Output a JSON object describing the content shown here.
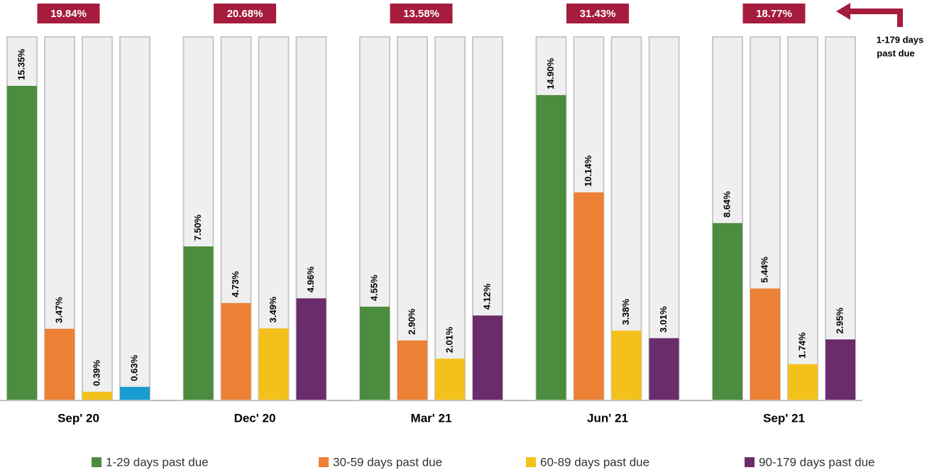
{
  "chart_data": {
    "type": "bar",
    "categories": [
      "Sep' 20",
      "Dec' 20",
      "Mar' 21",
      "Jun' 21",
      "Sep' 21"
    ],
    "totals": [
      19.84,
      20.68,
      13.58,
      31.43,
      18.77
    ],
    "total_labels": [
      "19.84%",
      "20.68%",
      "13.58%",
      "31.43%",
      "18.77%"
    ],
    "annotation": [
      "1-179 days",
      "past due"
    ],
    "series": [
      {
        "name": "1-29 days past due",
        "color": "#4b8c3e",
        "values": [
          15.35,
          7.5,
          4.55,
          14.9,
          8.64
        ],
        "value_labels": [
          "15.35%",
          "7.50%",
          "4.55%",
          "14.90%",
          "8.64%"
        ]
      },
      {
        "name": "30-59 days past due",
        "color": "#ec8035",
        "values": [
          3.47,
          4.73,
          2.9,
          10.14,
          5.44
        ],
        "value_labels": [
          "3.47%",
          "4.73%",
          "2.90%",
          "10.14%",
          "5.44%"
        ]
      },
      {
        "name": "60-89 days past due",
        "color": "#f3c01c",
        "values": [
          0.39,
          3.49,
          2.01,
          3.38,
          1.74
        ],
        "value_labels": [
          "0.39%",
          "3.49%",
          "2.01%",
          "3.38%",
          "1.74%"
        ]
      },
      {
        "name": "90-179 days past due",
        "color": "#6a2c6a",
        "colors": [
          "#1a9bd0",
          "#6a2c6a",
          "#6a2c6a",
          "#6a2c6a",
          "#6a2c6a"
        ],
        "values": [
          0.63,
          4.96,
          4.12,
          3.01,
          2.95
        ],
        "value_labels": [
          "0.63%",
          "4.96%",
          "4.12%",
          "3.01%",
          "2.95%"
        ]
      }
    ]
  }
}
